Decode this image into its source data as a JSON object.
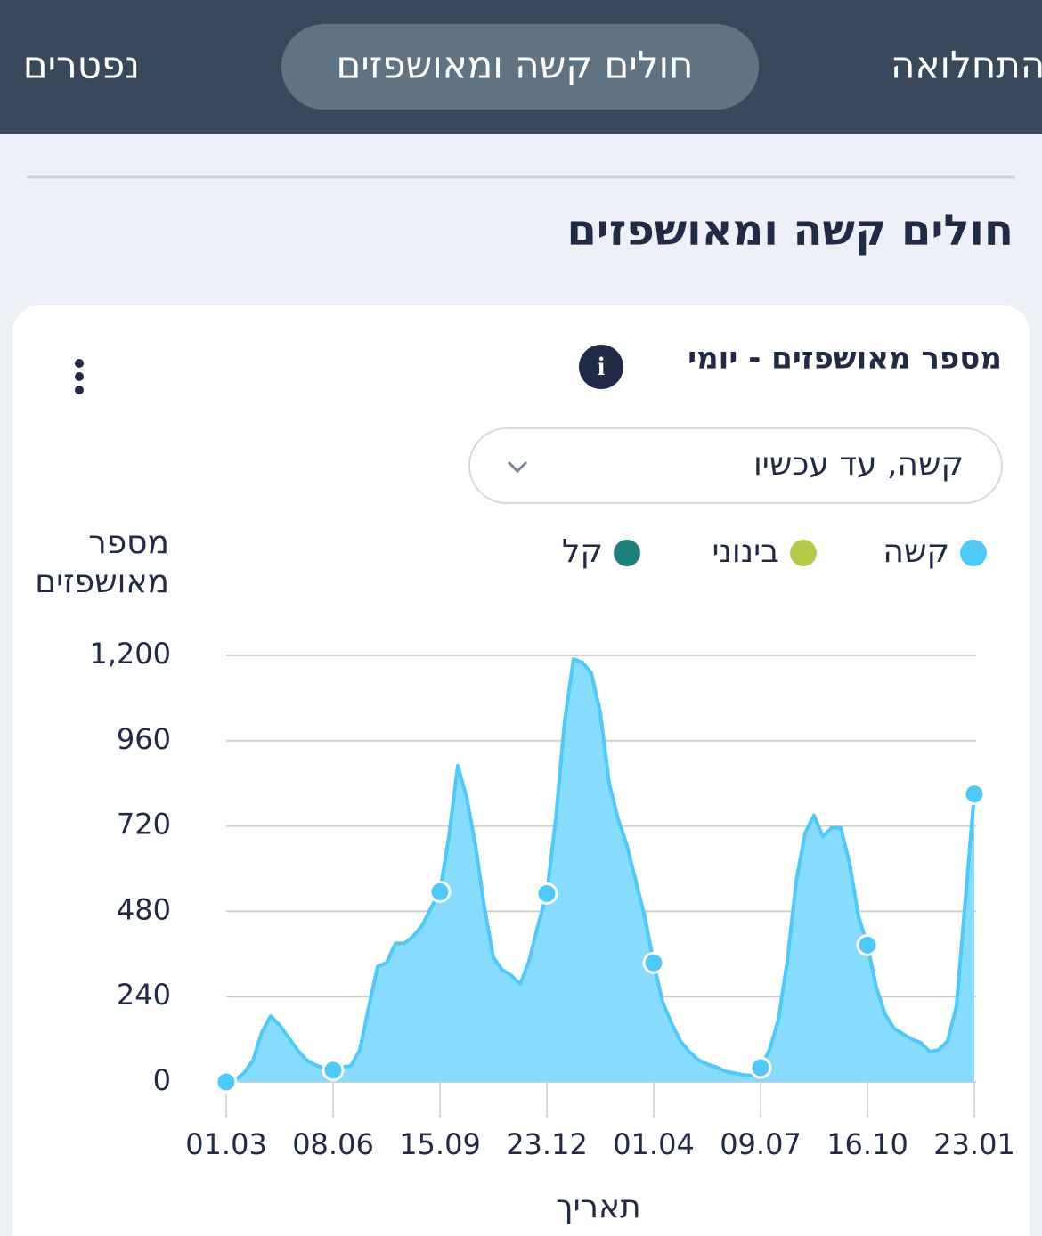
{
  "tabs": [
    "התחלואה",
    "חולים קשה ומאושפזים",
    "נפטרים"
  ],
  "active_tab": 1,
  "section_title": "חולים קשה ומאושפזים",
  "card": {
    "title": "מספר מאושפזים - יומי",
    "info_icon": "i",
    "dropdown": "קשה, עד עכשיו"
  },
  "chart_data": {
    "type": "area",
    "ylabel_lines": [
      "מספר",
      "מאושפזים"
    ],
    "xlabel": "תאריך",
    "categories": [
      "01.03",
      null,
      null,
      null,
      null,
      null,
      null,
      null,
      null,
      null,
      null,
      null,
      "08.06",
      null,
      null,
      null,
      null,
      null,
      null,
      null,
      null,
      null,
      null,
      null,
      "15.09",
      null,
      null,
      null,
      null,
      null,
      null,
      null,
      null,
      null,
      null,
      null,
      "23.12",
      null,
      null,
      null,
      null,
      null,
      null,
      null,
      null,
      null,
      null,
      null,
      "01.04",
      null,
      null,
      null,
      null,
      null,
      null,
      null,
      null,
      null,
      null,
      null,
      "09.07",
      null,
      null,
      null,
      null,
      null,
      null,
      null,
      null,
      null,
      null,
      null,
      "16.10",
      null,
      null,
      null,
      null,
      null,
      null,
      null,
      null,
      null,
      null,
      null,
      "23.01"
    ],
    "series": [
      {
        "name": "קשה",
        "color": "#4fc9f8",
        "fill": "#87dbfd",
        "values": [
          0,
          5,
          25,
          60,
          140,
          185,
          160,
          125,
          90,
          62,
          48,
          38,
          33,
          42,
          45,
          90,
          210,
          325,
          335,
          390,
          390,
          410,
          440,
          490,
          535,
          690,
          890,
          800,
          665,
          490,
          350,
          315,
          300,
          275,
          340,
          440,
          530,
          740,
          1015,
          1190,
          1180,
          1150,
          1040,
          840,
          740,
          665,
          565,
          465,
          335,
          225,
          165,
          115,
          85,
          62,
          50,
          42,
          30,
          25,
          20,
          18,
          40,
          90,
          175,
          340,
          565,
          700,
          750,
          690,
          715,
          715,
          615,
          465,
          385,
          265,
          190,
          150,
          135,
          120,
          110,
          85,
          90,
          115,
          215,
          515,
          810
        ]
      }
    ],
    "other_legend_entries": [
      {
        "name": "בינוני",
        "color": "#b5c94a"
      },
      {
        "name": "קל",
        "color": "#1e7f7a"
      }
    ],
    "ylim": [
      0,
      1200
    ],
    "yticks": [
      0,
      240,
      480,
      720,
      960,
      {
        "value": 1200,
        "label": "1,200"
      }
    ],
    "grid": true
  }
}
